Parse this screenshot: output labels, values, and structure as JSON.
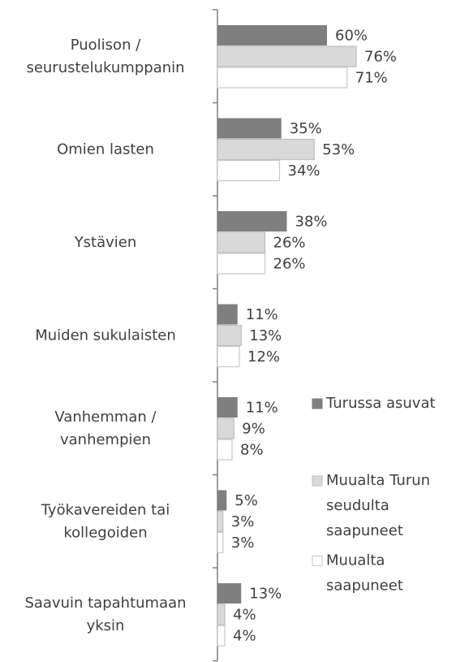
{
  "chart_data": {
    "type": "hbar",
    "categories": [
      "Puolison /\nseurustelukumppanin",
      "Omien lasten",
      "Ystävien",
      "Muiden sukulaisten",
      "Vanhemman /\nvanhempien",
      "Työkavereiden tai\nkollegoiden",
      "Saavuin tapahtumaan\nyksin"
    ],
    "series": [
      {
        "name": "Turussa asuvat",
        "color": "#7f7f7f",
        "values": [
          60,
          35,
          38,
          11,
          11,
          5,
          13
        ],
        "value_labels": [
          "60%",
          "35%",
          "38%",
          "11%",
          "11%",
          "5%",
          "13%"
        ]
      },
      {
        "name": "Muualta Turun\nseudulta\nsaapuneet",
        "color": "#d9d9d9",
        "values": [
          76,
          53,
          26,
          13,
          9,
          3,
          4
        ],
        "value_labels": [
          "76%",
          "53%",
          "26%",
          "13%",
          "9%",
          "3%",
          "4%"
        ]
      },
      {
        "name": "Muualta\nsaapuneet",
        "color": "#ffffff",
        "values": [
          71,
          34,
          26,
          12,
          8,
          3,
          4
        ],
        "value_labels": [
          "71%",
          "34%",
          "26%",
          "12%",
          "8%",
          "3%",
          "4%"
        ]
      }
    ],
    "legend": "right"
  }
}
